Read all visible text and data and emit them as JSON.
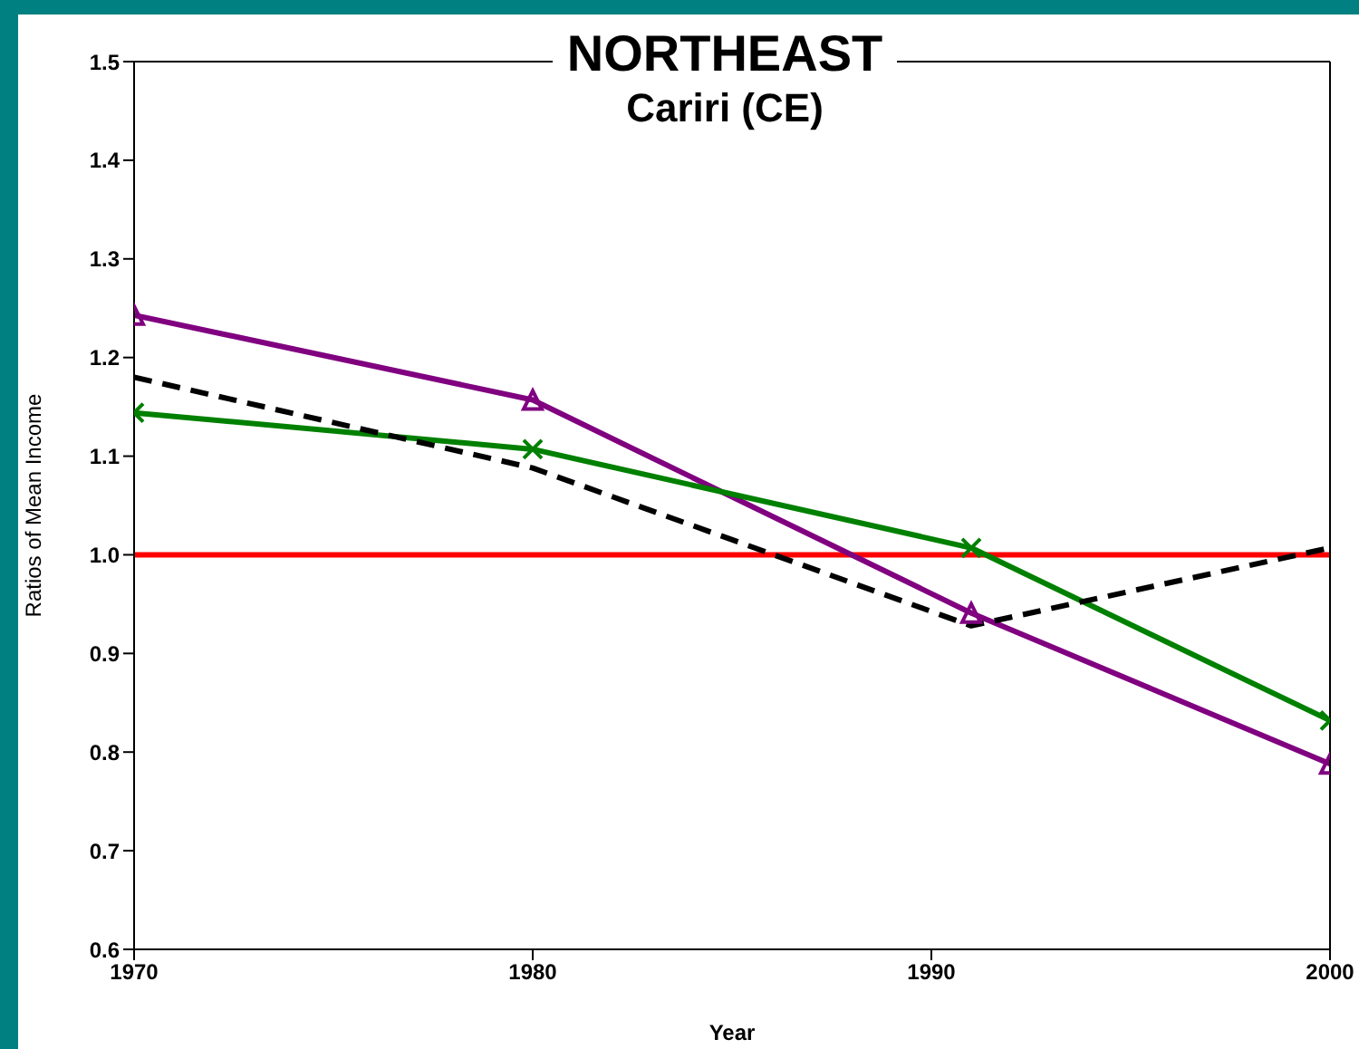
{
  "chart_data": {
    "type": "line",
    "title": "NORTHEAST",
    "subtitle": "Cariri (CE)",
    "xlabel": "Year",
    "ylabel": "Ratios of Mean Income",
    "x": [
      1970,
      1980,
      1991,
      2000
    ],
    "series": [
      {
        "color": "#ff0000",
        "values": [
          1.0,
          1.0,
          1.0,
          1.0
        ],
        "marker": "none",
        "line_style": "solid"
      },
      {
        "color": "#800080",
        "values": [
          1.243,
          1.157,
          0.941,
          0.788
        ],
        "marker": "triangle",
        "line_style": "solid"
      },
      {
        "color": "#008000",
        "values": [
          1.144,
          1.107,
          1.007,
          0.832
        ],
        "marker": "cross",
        "line_style": "solid"
      },
      {
        "color": "#000000",
        "values": [
          1.18,
          1.088,
          0.928,
          1.007
        ],
        "marker": "none",
        "line_style": "dashed"
      }
    ],
    "xlim": [
      1970,
      2000
    ],
    "xticks": [
      1970,
      1980,
      1990,
      2000
    ],
    "ylim": [
      0.6,
      1.5
    ],
    "yticks": [
      {
        "value": 0.6,
        "label": "0.6"
      },
      {
        "value": 0.7,
        "label": "0.7"
      },
      {
        "value": 0.8,
        "label": "0.8"
      },
      {
        "value": 0.9,
        "label": "0.9"
      },
      {
        "value": 1.0,
        "label": "1.0"
      },
      {
        "value": 1.1,
        "label": "1.1"
      },
      {
        "value": 1.2,
        "label": "1.2"
      },
      {
        "value": 1.3,
        "label": "1.3"
      },
      {
        "value": 1.4,
        "label": "1.4"
      },
      {
        "value": 1.5,
        "label": "1.5"
      }
    ],
    "grid": false,
    "legend": false
  }
}
